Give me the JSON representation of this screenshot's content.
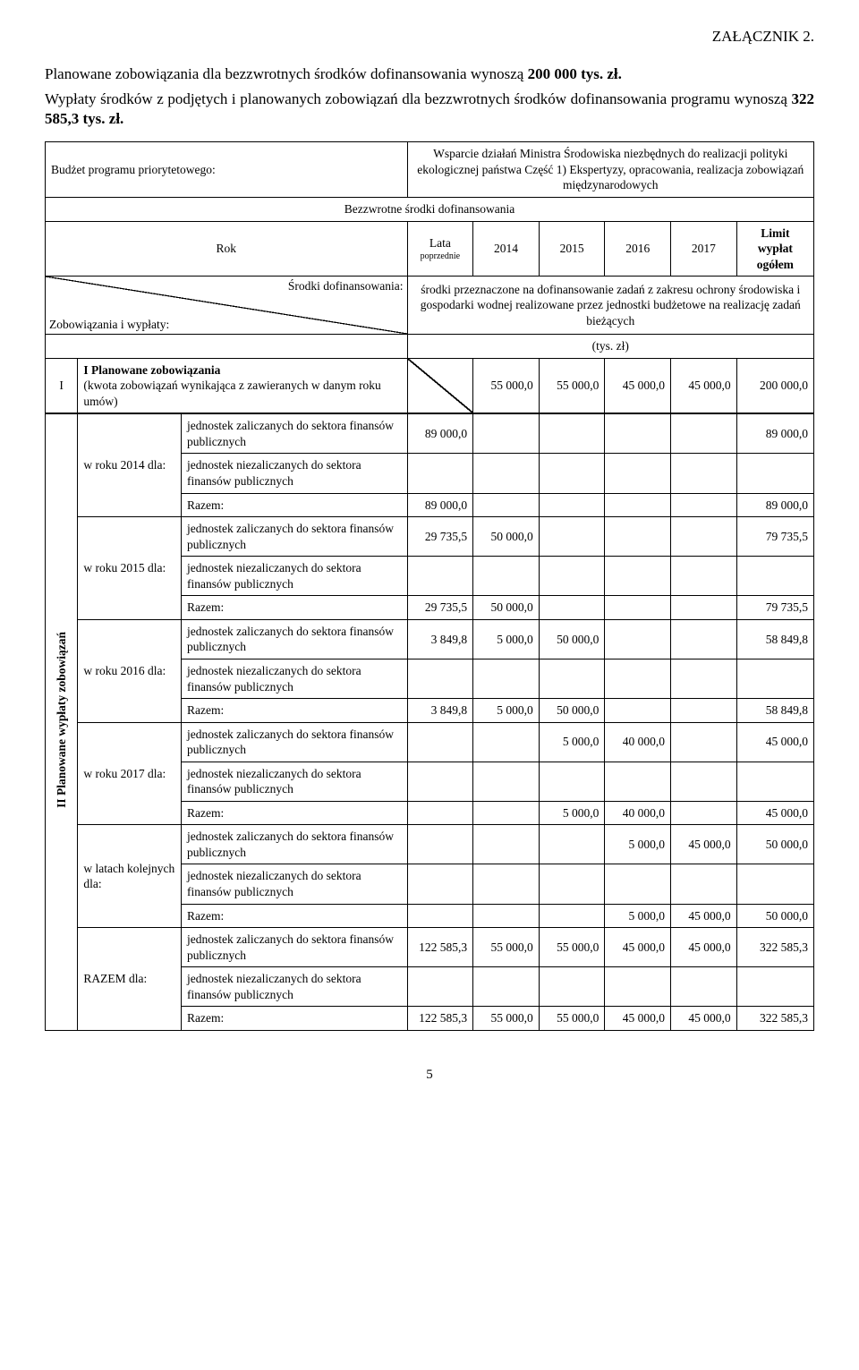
{
  "header": {
    "attachment": "ZAŁĄCZNIK 2.",
    "p1_a": "Planowane zobowiązania dla bezzwrotnych środków dofinansowania wynoszą ",
    "p1_b": "200 000 tys. zł.",
    "p2_a": "Wypłaty środków z podjętych i planowanych zobowiązań dla bezzwrotnych środków dofinansowania programu wynoszą ",
    "p2_b": "322 585,3 tys. zł."
  },
  "budget": {
    "label": "Budżet programu priorytetowego:",
    "desc": "Wsparcie działań Ministra Środowiska niezbędnych do realizacji polityki ekologicznej państwa Część 1) Ekspertyzy, opracowania, realizacja zobowiązań międzynarodowych"
  },
  "section_bezz": "Bezzwrotne środki dofinansowania",
  "hdr": {
    "rok": "Rok",
    "lata": "Lata",
    "lata_sub": "poprzednie",
    "y2014": "2014",
    "y2015": "2015",
    "y2016": "2016",
    "y2017": "2017",
    "limit": "Limit wypłat ogółem"
  },
  "srodki": {
    "diag_bot": "Zobowiązania i wypłaty:",
    "diag_top": "Środki dofinansowania:",
    "desc": "środki przeznaczone na dofinansowanie zadań z zakresu ochrony środowiska i gospodarki wodnej realizowane przez jednostki budżetowe na realizację zadań bieżących"
  },
  "tys": "(tys. zł)",
  "secI": {
    "num": "I",
    "title": "I Planowane zobowiązania",
    "sub": "(kwota zobowiązań wynikająca z zawieranych w danym roku umów)",
    "v2014": "55 000,0",
    "v2015": "55 000,0",
    "v2016": "45 000,0",
    "v2017": "45 000,0",
    "total": "200 000,0"
  },
  "secII_label": "II Planowane wypłaty zobowiązań",
  "rowlabels": {
    "zal": "jednostek zaliczanych do sektora finansów publicznych",
    "niezal": "jednostek niezaliczanych do sektora finansów publicznych",
    "razem": "Razem:"
  },
  "groups": [
    {
      "label": "w roku 2014 dla:",
      "zal": {
        "lp": "89 000,0",
        "c14": "",
        "c15": "",
        "c16": "",
        "c17": "",
        "tot": "89 000,0"
      },
      "niezal": {
        "lp": "",
        "c14": "",
        "c15": "",
        "c16": "",
        "c17": "",
        "tot": ""
      },
      "razem": {
        "lp": "89 000,0",
        "c14": "",
        "c15": "",
        "c16": "",
        "c17": "",
        "tot": "89 000,0"
      }
    },
    {
      "label": "w roku 2015 dla:",
      "zal": {
        "lp": "29 735,5",
        "c14": "50 000,0",
        "c15": "",
        "c16": "",
        "c17": "",
        "tot": "79 735,5"
      },
      "niezal": {
        "lp": "",
        "c14": "",
        "c15": "",
        "c16": "",
        "c17": "",
        "tot": ""
      },
      "razem": {
        "lp": "29 735,5",
        "c14": "50 000,0",
        "c15": "",
        "c16": "",
        "c17": "",
        "tot": "79 735,5"
      }
    },
    {
      "label": "w roku 2016 dla:",
      "zal": {
        "lp": "3 849,8",
        "c14": "5 000,0",
        "c15": "50 000,0",
        "c16": "",
        "c17": "",
        "tot": "58 849,8"
      },
      "niezal": {
        "lp": "",
        "c14": "",
        "c15": "",
        "c16": "",
        "c17": "",
        "tot": ""
      },
      "razem": {
        "lp": "3 849,8",
        "c14": "5 000,0",
        "c15": "50 000,0",
        "c16": "",
        "c17": "",
        "tot": "58 849,8"
      }
    },
    {
      "label": "w roku 2017 dla:",
      "zal": {
        "lp": "",
        "c14": "",
        "c15": "5 000,0",
        "c16": "40 000,0",
        "c17": "",
        "tot": "45 000,0"
      },
      "niezal": {
        "lp": "",
        "c14": "",
        "c15": "",
        "c16": "",
        "c17": "",
        "tot": ""
      },
      "razem": {
        "lp": "",
        "c14": "",
        "c15": "5 000,0",
        "c16": "40 000,0",
        "c17": "",
        "tot": "45 000,0"
      }
    },
    {
      "label": "w latach kolejnych dla:",
      "zal": {
        "lp": "",
        "c14": "",
        "c15": "",
        "c16": "5 000,0",
        "c17": "45 000,0",
        "tot": "50 000,0"
      },
      "niezal": {
        "lp": "",
        "c14": "",
        "c15": "",
        "c16": "",
        "c17": "",
        "tot": ""
      },
      "razem": {
        "lp": "",
        "c14": "",
        "c15": "",
        "c16": "5 000,0",
        "c17": "45 000,0",
        "tot": "50 000,0"
      }
    },
    {
      "label": "RAZEM dla:",
      "zal": {
        "lp": "122 585,3",
        "c14": "55 000,0",
        "c15": "55 000,0",
        "c16": "45 000,0",
        "c17": "45 000,0",
        "tot": "322 585,3"
      },
      "niezal": {
        "lp": "",
        "c14": "",
        "c15": "",
        "c16": "",
        "c17": "",
        "tot": ""
      },
      "razem": {
        "lp": "122 585,3",
        "c14": "55 000,0",
        "c15": "55 000,0",
        "c16": "45 000,0",
        "c17": "45 000,0",
        "tot": "322 585,3"
      }
    }
  ],
  "page": "5"
}
